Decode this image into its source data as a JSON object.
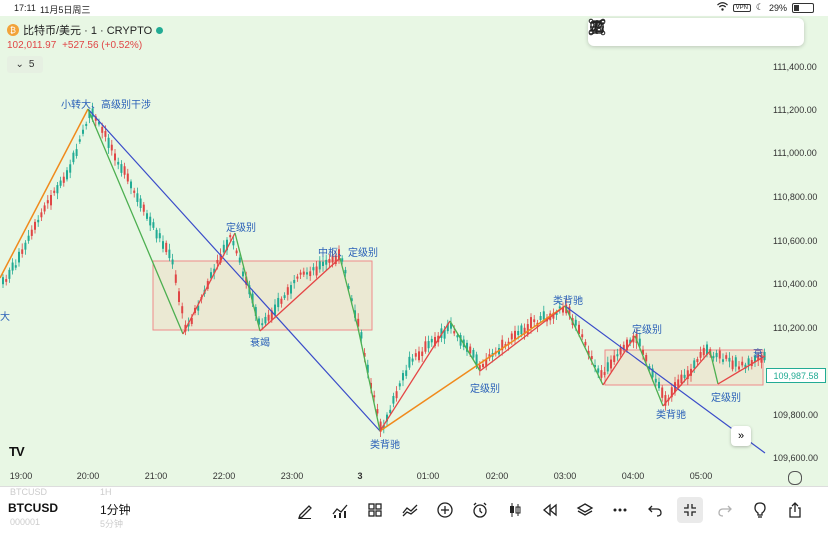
{
  "status_bar": {
    "time": "17:11",
    "date": "11月5日周三",
    "vpn": "VPN",
    "battery": "29%"
  },
  "header": {
    "coin_glyph": "₿",
    "symbol_title": "比特币/美元 · 1 · CRYPTO",
    "price": "102,011.97",
    "change": "+527.56 (+0.52%)",
    "collapse_label": "5"
  },
  "drawing_toolbar": {
    "tools": [
      "trend-line",
      "ray",
      "vertical-line",
      "rectangle",
      "path",
      "parallel-channel",
      "text"
    ]
  },
  "price_axis": {
    "ticks": [
      "111,400.00",
      "111,200.00",
      "111,000.00",
      "110,800.00",
      "110,600.00",
      "110,400.00",
      "110,200.00",
      "109,800.00",
      "109,600.00"
    ],
    "last_price": "109,987.58"
  },
  "time_axis": {
    "ticks": [
      "19:00",
      "20:00",
      "21:00",
      "22:00",
      "23:00",
      "3",
      "01:00",
      "02:00",
      "03:00",
      "04:00",
      "05:00"
    ]
  },
  "annotations": {
    "left_edge": "大",
    "top": "小转大、高级别干涉",
    "dingjibie_1": "定级别",
    "shuaijie": "衰竭",
    "zhongshu": "中枢、定级别",
    "leibeichi_1": "类背驰",
    "dingjibie_2": "定级别",
    "leibeichi_2": "类背驰",
    "dingjibie_3": "定级别",
    "leibeichi_3": "类背驰",
    "dingjibie_4": "定级别",
    "right_edge": "衰"
  },
  "logo": "TV",
  "goto_label": "»",
  "bottom_bar": {
    "ghost_symbol_top": "BTCUSD",
    "ghost_interval_top": "1H",
    "symbol": "BTCUSD",
    "interval": "1分钟",
    "ghost_symbol_bottom": "000001",
    "ghost_interval_bottom": "5分钟",
    "tools": [
      "pen",
      "indicators",
      "layouts",
      "compare",
      "add",
      "alert",
      "chart-type",
      "replay",
      "layers",
      "more",
      "undo",
      "exit-fullscreen",
      "redo",
      "light-bulb",
      "share"
    ]
  },
  "colors": {
    "up": "#e04545",
    "down": "#22ab94",
    "chart_bg": "#e8f7e4",
    "stroke_up": "#e54545",
    "stroke_down": "#4caf50",
    "trend_blue": "#3a4cc9",
    "trend_orange": "#f08a1c",
    "box_fill": "#ecdfc8",
    "box_stroke": "#ef8a8a"
  }
}
